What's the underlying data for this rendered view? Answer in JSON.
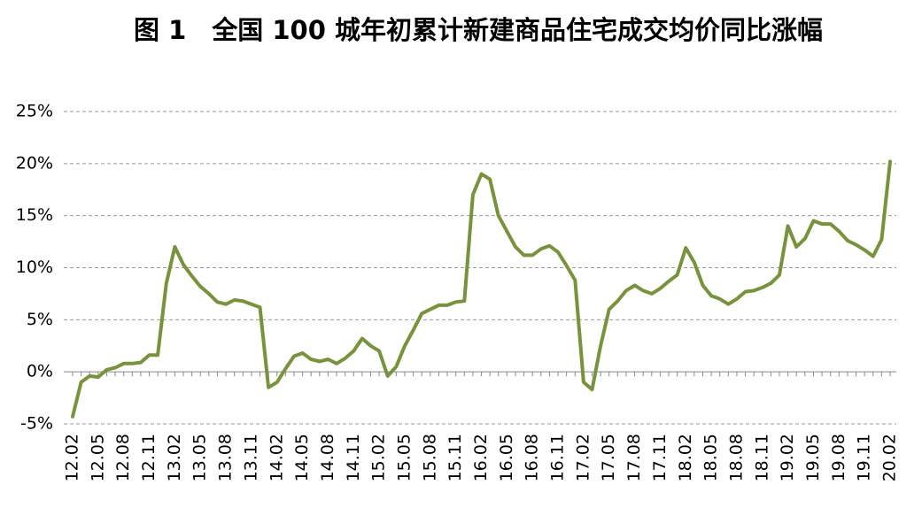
{
  "chart_data": {
    "type": "line",
    "title": "图 1　全国 100 城年初累计新建商品住宅成交均价同比涨幅",
    "categories": [
      "12.02",
      null,
      null,
      "12.05",
      null,
      null,
      "12.08",
      null,
      null,
      "12.11",
      null,
      null,
      "13.02",
      null,
      null,
      "13.05",
      null,
      null,
      "13.08",
      null,
      null,
      "13.11",
      null,
      null,
      "14.02",
      null,
      null,
      "14.05",
      null,
      null,
      "14.08",
      null,
      null,
      "14.11",
      null,
      null,
      "15.02",
      null,
      null,
      "15.05",
      null,
      null,
      "15.08",
      null,
      null,
      "15.11",
      null,
      null,
      "16.02",
      null,
      null,
      "16.05",
      null,
      null,
      "16.08",
      null,
      null,
      "16.11",
      null,
      null,
      "17.02",
      null,
      null,
      "17.05",
      null,
      null,
      "17.08",
      null,
      null,
      "17.11",
      null,
      null,
      "18.02",
      null,
      null,
      "18.05",
      null,
      null,
      "18.08",
      null,
      null,
      "18.11",
      null,
      null,
      "19.02",
      null,
      null,
      "19.05",
      null,
      null,
      "19.08",
      null,
      null,
      "19.11",
      null,
      null,
      "20.02"
    ],
    "series": [
      {
        "name": "同比涨幅",
        "color": "#77933c",
        "values": [
          -4.3,
          -1.0,
          -0.4,
          -0.5,
          0.2,
          0.4,
          0.8,
          0.8,
          0.9,
          1.6,
          1.6,
          8.5,
          12.0,
          10.3,
          9.2,
          8.2,
          7.5,
          6.7,
          6.5,
          6.9,
          6.8,
          6.5,
          6.2,
          -1.5,
          -1.0,
          0.3,
          1.5,
          1.8,
          1.2,
          1.0,
          1.2,
          0.8,
          1.3,
          2.0,
          3.2,
          2.5,
          2.0,
          -0.4,
          0.5,
          2.5,
          4.0,
          5.6,
          6.0,
          6.4,
          6.4,
          6.7,
          6.8,
          17.0,
          19.0,
          18.5,
          15.0,
          13.5,
          12.0,
          11.2,
          11.2,
          11.8,
          12.1,
          11.5,
          10.2,
          8.8,
          -1.0,
          -1.7,
          2.5,
          6.0,
          6.8,
          7.8,
          8.3,
          7.8,
          7.5,
          8.0,
          8.7,
          9.3,
          11.9,
          10.5,
          8.3,
          7.3,
          7.0,
          6.5,
          7.0,
          7.7,
          7.8,
          8.1,
          8.5,
          9.3,
          14.0,
          12.0,
          12.8,
          14.5,
          14.2,
          14.2,
          13.5,
          12.6,
          12.2,
          11.7,
          11.1,
          12.7,
          20.2
        ]
      }
    ],
    "ylim": [
      -5,
      25
    ],
    "yticks": [
      {
        "value": -5,
        "label": "-5%"
      },
      {
        "value": 0,
        "label": "0%"
      },
      {
        "value": 5,
        "label": "5%"
      },
      {
        "value": 10,
        "label": "10%"
      },
      {
        "value": 15,
        "label": "15%"
      },
      {
        "value": 20,
        "label": "20%"
      },
      {
        "value": 25,
        "label": "25%"
      }
    ],
    "grid": true
  }
}
